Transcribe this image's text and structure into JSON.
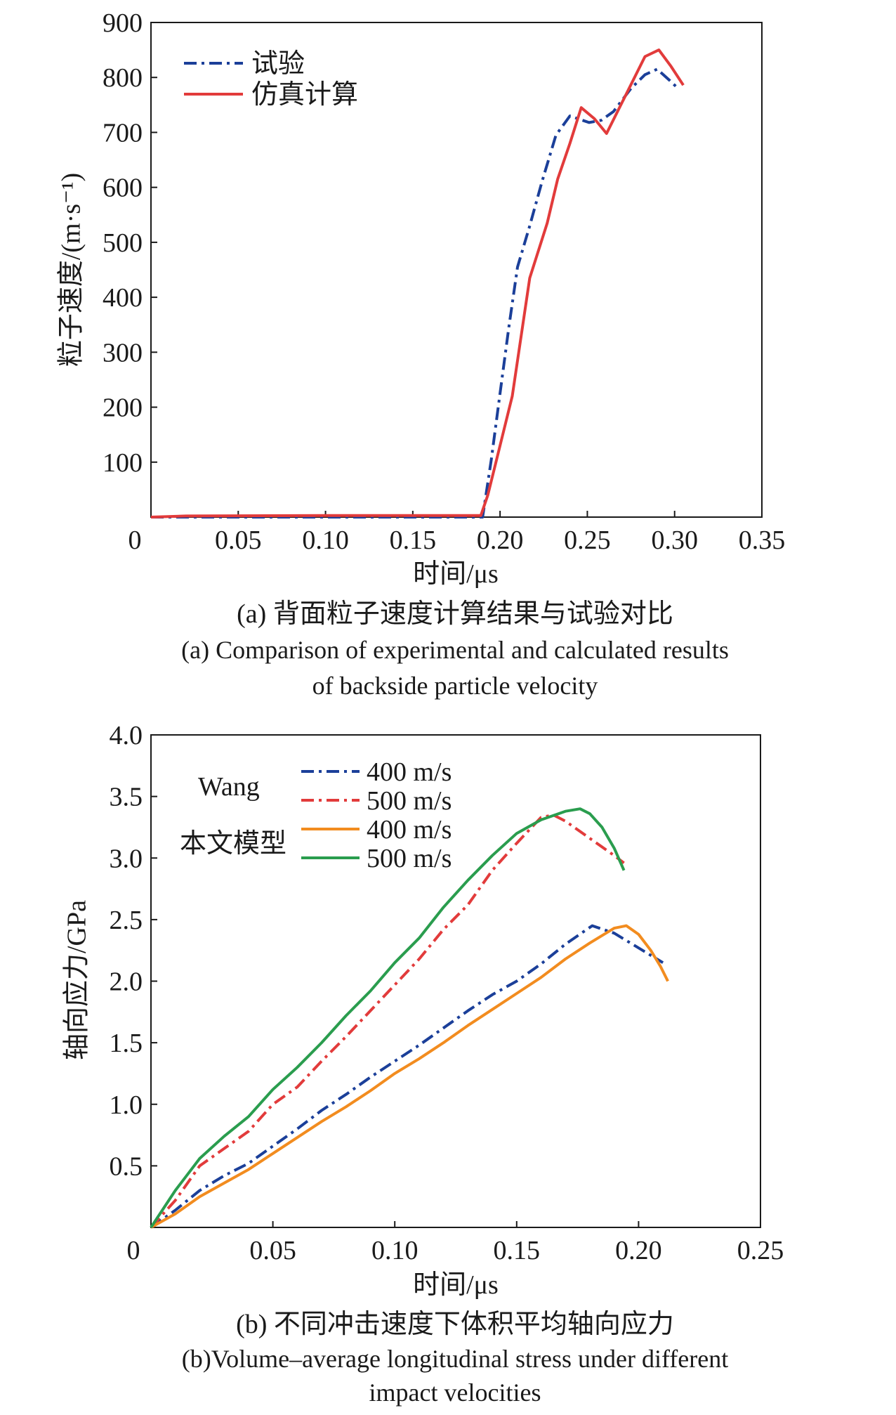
{
  "chart_data": [
    {
      "type": "line",
      "title": "",
      "xlabel": "时间/μs",
      "ylabel": "粒子速度/(m·s⁻¹)",
      "xlim": [
        0,
        0.35
      ],
      "ylim": [
        0,
        900
      ],
      "xticks": [
        0,
        0.05,
        0.1,
        0.15,
        0.2,
        0.25,
        0.3,
        0.35
      ],
      "xtick_labels": [
        "0",
        "0.05",
        "0.10",
        "0.15",
        "0.20",
        "0.25",
        "0.30",
        "0.35"
      ],
      "yticks": [
        100,
        200,
        300,
        400,
        500,
        600,
        700,
        800,
        900
      ],
      "ytick_labels": [
        "100",
        "200",
        "300",
        "400",
        "500",
        "600",
        "700",
        "800",
        "900"
      ],
      "grid": false,
      "legend": "top-left",
      "series": [
        {
          "name": "试验",
          "style": "dash-dot",
          "color": "#1b3f99",
          "x": [
            0,
            0.1,
            0.19,
            0.195,
            0.2,
            0.205,
            0.21,
            0.217,
            0.224,
            0.232,
            0.24,
            0.251,
            0.258,
            0.265,
            0.275,
            0.283,
            0.29,
            0.297,
            0.302
          ],
          "y": [
            0,
            0,
            0,
            105,
            225,
            345,
            455,
            530,
            610,
            695,
            730,
            718,
            722,
            738,
            780,
            805,
            815,
            795,
            780
          ]
        },
        {
          "name": "仿真计算",
          "style": "solid",
          "color": "#e23b3b",
          "x": [
            0,
            0.02,
            0.1,
            0.189,
            0.193,
            0.2,
            0.207,
            0.217,
            0.227,
            0.233,
            0.24,
            0.2465,
            0.254,
            0.261,
            0.27,
            0.283,
            0.291,
            0.298,
            0.305
          ],
          "y": [
            0,
            2,
            3,
            3,
            40,
            130,
            220,
            435,
            535,
            615,
            680,
            745,
            725,
            698,
            755,
            838,
            850,
            820,
            786
          ]
        }
      ],
      "caption_zh": "(a) 背面粒子速度计算结果与试验对比",
      "caption_en": [
        "(a) Comparison of experimental and calculated results",
        "of backside particle velocity"
      ]
    },
    {
      "type": "line",
      "title": "",
      "xlabel": "时间/μs",
      "ylabel": "轴向应力/GPa",
      "xlim": [
        0,
        0.25
      ],
      "ylim": [
        0,
        4.0
      ],
      "xticks": [
        0,
        0.05,
        0.1,
        0.15,
        0.2,
        0.25
      ],
      "xtick_labels": [
        "0",
        "0.05",
        "0.10",
        "0.15",
        "0.20",
        "0.25"
      ],
      "yticks": [
        0.5,
        1.0,
        1.5,
        2.0,
        2.5,
        3.0,
        3.5,
        4.0
      ],
      "ytick_labels": [
        "0.5",
        "1.0",
        "1.5",
        "2.0",
        "2.5",
        "3.0",
        "3.5",
        "4.0"
      ],
      "grid": false,
      "legend": "top-left",
      "legend_groups": [
        "Wang",
        "本文模型"
      ],
      "series": [
        {
          "name": "400 m/s",
          "group": "Wang",
          "style": "dash-dot",
          "color": "#1b3f99",
          "x": [
            0,
            0.01,
            0.02,
            0.03,
            0.04,
            0.05,
            0.06,
            0.07,
            0.08,
            0.09,
            0.1,
            0.11,
            0.12,
            0.13,
            0.14,
            0.15,
            0.16,
            0.17,
            0.181,
            0.19,
            0.2,
            0.21
          ],
          "y": [
            0,
            0.14,
            0.3,
            0.42,
            0.52,
            0.66,
            0.8,
            0.95,
            1.08,
            1.22,
            1.35,
            1.48,
            1.62,
            1.76,
            1.89,
            2.0,
            2.14,
            2.3,
            2.45,
            2.39,
            2.27,
            2.15
          ]
        },
        {
          "name": "500 m/s",
          "group": "Wang",
          "style": "dash-dot",
          "color": "#e23b3b",
          "x": [
            0,
            0.01,
            0.02,
            0.03,
            0.04,
            0.05,
            0.06,
            0.07,
            0.08,
            0.09,
            0.1,
            0.11,
            0.12,
            0.13,
            0.14,
            0.15,
            0.16,
            0.165,
            0.17,
            0.18,
            0.19,
            0.194
          ],
          "y": [
            0,
            0.22,
            0.5,
            0.64,
            0.78,
            1.0,
            1.14,
            1.35,
            1.55,
            1.76,
            1.97,
            2.18,
            2.42,
            2.62,
            2.9,
            3.12,
            3.33,
            3.35,
            3.3,
            3.16,
            3.02,
            2.96
          ]
        },
        {
          "name": "400 m/s",
          "group": "本文模型",
          "style": "solid",
          "color": "#f28c1f",
          "x": [
            0,
            0.01,
            0.02,
            0.03,
            0.04,
            0.05,
            0.06,
            0.07,
            0.08,
            0.09,
            0.1,
            0.11,
            0.12,
            0.13,
            0.14,
            0.15,
            0.16,
            0.17,
            0.18,
            0.19,
            0.195,
            0.2,
            0.205,
            0.209,
            0.212
          ],
          "y": [
            0,
            0.11,
            0.25,
            0.36,
            0.47,
            0.6,
            0.73,
            0.86,
            0.98,
            1.11,
            1.25,
            1.37,
            1.5,
            1.64,
            1.77,
            1.9,
            2.03,
            2.18,
            2.31,
            2.43,
            2.45,
            2.38,
            2.25,
            2.12,
            2.0
          ]
        },
        {
          "name": "500 m/s",
          "group": "本文模型",
          "style": "solid",
          "color": "#2a9d4e",
          "x": [
            0,
            0.01,
            0.02,
            0.03,
            0.04,
            0.05,
            0.06,
            0.07,
            0.08,
            0.09,
            0.1,
            0.11,
            0.12,
            0.13,
            0.14,
            0.15,
            0.16,
            0.17,
            0.176,
            0.18,
            0.185,
            0.19,
            0.194
          ],
          "y": [
            0,
            0.3,
            0.56,
            0.74,
            0.9,
            1.12,
            1.3,
            1.5,
            1.72,
            1.92,
            2.15,
            2.35,
            2.6,
            2.82,
            3.02,
            3.2,
            3.31,
            3.38,
            3.4,
            3.36,
            3.25,
            3.08,
            2.9
          ]
        }
      ],
      "caption_zh": "(b) 不同冲击速度下体积平均轴向应力",
      "caption_en": [
        "(b)Volume–average longitudinal stress under different",
        "impact velocities"
      ]
    }
  ]
}
